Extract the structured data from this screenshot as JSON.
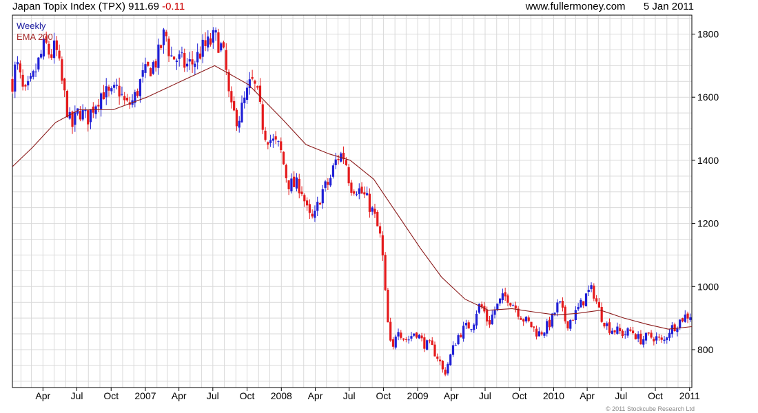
{
  "header": {
    "title": "Japan Topix Index (TPX)",
    "last_value": "911.69",
    "change": "-0.11",
    "site": "www.fullermoney.com",
    "date": "5 Jan 2011"
  },
  "legend": {
    "period": "Weekly",
    "ema": "EMA 200"
  },
  "copyright": "© 2011 Stockcube Research Ltd",
  "colors": {
    "up": "#1f1fd6",
    "down": "#e41a1c",
    "ema": "#8b1a1a",
    "grid": "#d9d9d9",
    "change": "#cc0000",
    "legend_weekly": "#1a1aa0",
    "legend_ema": "#a52a2a"
  },
  "chart_data": {
    "type": "candlestick",
    "title": "Japan Topix Index (TPX)",
    "frequency": "weekly",
    "y_axis_side": "right",
    "ylim": [
      680,
      1860
    ],
    "yticks": [
      800,
      1000,
      1200,
      1400,
      1600,
      1800
    ],
    "xlim": [
      "2006-01-09",
      "2011-01-07"
    ],
    "xticks": [
      {
        "date": "2006-04-01",
        "label": "Apr"
      },
      {
        "date": "2006-07-01",
        "label": "Jul"
      },
      {
        "date": "2006-10-01",
        "label": "Oct"
      },
      {
        "date": "2007-01-01",
        "label": "2007"
      },
      {
        "date": "2007-04-01",
        "label": "Apr"
      },
      {
        "date": "2007-07-01",
        "label": "Jul"
      },
      {
        "date": "2007-10-01",
        "label": "Oct"
      },
      {
        "date": "2008-01-01",
        "label": "2008"
      },
      {
        "date": "2008-04-01",
        "label": "Apr"
      },
      {
        "date": "2008-07-01",
        "label": "Jul"
      },
      {
        "date": "2008-10-01",
        "label": "Oct"
      },
      {
        "date": "2009-01-01",
        "label": "2009"
      },
      {
        "date": "2009-04-01",
        "label": "Apr"
      },
      {
        "date": "2009-07-01",
        "label": "Jul"
      },
      {
        "date": "2009-10-01",
        "label": "Oct"
      },
      {
        "date": "2010-01-01",
        "label": "2010"
      },
      {
        "date": "2010-04-01",
        "label": "Apr"
      },
      {
        "date": "2010-07-01",
        "label": "Jul"
      },
      {
        "date": "2010-10-01",
        "label": "Oct"
      },
      {
        "date": "2011-01-01",
        "label": "2011"
      }
    ],
    "price_anchors": [
      [
        "2006-01-09",
        1650
      ],
      [
        "2006-01-20",
        1710
      ],
      [
        "2006-02-10",
        1600
      ],
      [
        "2006-03-03",
        1650
      ],
      [
        "2006-03-17",
        1700
      ],
      [
        "2006-04-07",
        1770
      ],
      [
        "2006-04-21",
        1730
      ],
      [
        "2006-05-05",
        1760
      ],
      [
        "2006-05-26",
        1620
      ],
      [
        "2006-06-16",
        1500
      ],
      [
        "2006-07-07",
        1560
      ],
      [
        "2006-07-28",
        1530
      ],
      [
        "2006-08-18",
        1580
      ],
      [
        "2006-09-08",
        1620
      ],
      [
        "2006-09-29",
        1600
      ],
      [
        "2006-10-20",
        1630
      ],
      [
        "2006-11-10",
        1570
      ],
      [
        "2006-12-01",
        1590
      ],
      [
        "2006-12-22",
        1660
      ],
      [
        "2007-01-19",
        1700
      ],
      [
        "2007-02-02",
        1720
      ],
      [
        "2007-02-23",
        1810
      ],
      [
        "2007-03-09",
        1730
      ],
      [
        "2007-03-30",
        1720
      ],
      [
        "2007-04-20",
        1700
      ],
      [
        "2007-05-11",
        1710
      ],
      [
        "2007-06-01",
        1750
      ],
      [
        "2007-06-22",
        1770
      ],
      [
        "2007-07-06",
        1790
      ],
      [
        "2007-07-20",
        1770
      ],
      [
        "2007-08-03",
        1710
      ],
      [
        "2007-08-17",
        1560
      ],
      [
        "2007-09-07",
        1530
      ],
      [
        "2007-09-28",
        1600
      ],
      [
        "2007-10-12",
        1650
      ],
      [
        "2007-10-26",
        1620
      ],
      [
        "2007-11-16",
        1490
      ],
      [
        "2007-12-07",
        1460
      ],
      [
        "2007-12-28",
        1440
      ],
      [
        "2008-01-18",
        1330
      ],
      [
        "2008-02-01",
        1320
      ],
      [
        "2008-02-22",
        1320
      ],
      [
        "2008-03-14",
        1220
      ],
      [
        "2008-03-28",
        1210
      ],
      [
        "2008-04-18",
        1300
      ],
      [
        "2008-05-09",
        1330
      ],
      [
        "2008-05-23",
        1390
      ],
      [
        "2008-06-06",
        1420
      ],
      [
        "2008-06-20",
        1410
      ],
      [
        "2008-07-04",
        1320
      ],
      [
        "2008-07-25",
        1310
      ],
      [
        "2008-08-15",
        1280
      ],
      [
        "2008-09-05",
        1230
      ],
      [
        "2008-09-26",
        1140
      ],
      [
        "2008-10-10",
        910
      ],
      [
        "2008-10-24",
        780
      ],
      [
        "2008-11-07",
        880
      ],
      [
        "2008-11-21",
        840
      ],
      [
        "2008-12-05",
        830
      ],
      [
        "2008-12-26",
        860
      ],
      [
        "2009-01-16",
        820
      ],
      [
        "2009-02-06",
        810
      ],
      [
        "2009-02-27",
        770
      ],
      [
        "2009-03-13",
        720
      ],
      [
        "2009-03-27",
        770
      ],
      [
        "2009-04-17",
        840
      ],
      [
        "2009-05-08",
        870
      ],
      [
        "2009-05-29",
        880
      ],
      [
        "2009-06-12",
        940
      ],
      [
        "2009-06-26",
        930
      ],
      [
        "2009-07-10",
        880
      ],
      [
        "2009-07-24",
        920
      ],
      [
        "2009-08-14",
        960
      ],
      [
        "2009-08-28",
        970
      ],
      [
        "2009-09-18",
        940
      ],
      [
        "2009-10-09",
        900
      ],
      [
        "2009-10-30",
        880
      ],
      [
        "2009-11-20",
        850
      ],
      [
        "2009-12-04",
        860
      ],
      [
        "2009-12-25",
        890
      ],
      [
        "2010-01-15",
        950
      ],
      [
        "2010-02-05",
        880
      ],
      [
        "2010-02-26",
        910
      ],
      [
        "2010-03-19",
        950
      ],
      [
        "2010-04-02",
        980
      ],
      [
        "2010-04-16",
        990
      ],
      [
        "2010-05-07",
        910
      ],
      [
        "2010-05-28",
        870
      ],
      [
        "2010-06-18",
        860
      ],
      [
        "2010-07-09",
        850
      ],
      [
        "2010-07-30",
        860
      ],
      [
        "2010-08-20",
        830
      ],
      [
        "2010-09-10",
        840
      ],
      [
        "2010-10-01",
        840
      ],
      [
        "2010-10-22",
        820
      ],
      [
        "2010-11-05",
        860
      ],
      [
        "2010-11-26",
        880
      ],
      [
        "2010-12-17",
        905
      ],
      [
        "2011-01-07",
        912
      ]
    ],
    "ema_200": [
      [
        "2006-01-09",
        1380
      ],
      [
        "2006-03-03",
        1440
      ],
      [
        "2006-05-05",
        1520
      ],
      [
        "2006-07-07",
        1560
      ],
      [
        "2006-10-06",
        1560
      ],
      [
        "2007-01-05",
        1600
      ],
      [
        "2007-04-06",
        1650
      ],
      [
        "2007-07-06",
        1700
      ],
      [
        "2007-10-05",
        1640
      ],
      [
        "2008-01-04",
        1530
      ],
      [
        "2008-03-07",
        1450
      ],
      [
        "2008-05-09",
        1420
      ],
      [
        "2008-07-04",
        1400
      ],
      [
        "2008-09-05",
        1340
      ],
      [
        "2008-11-07",
        1230
      ],
      [
        "2009-01-09",
        1120
      ],
      [
        "2009-03-06",
        1030
      ],
      [
        "2009-05-08",
        960
      ],
      [
        "2009-07-10",
        925
      ],
      [
        "2009-09-11",
        930
      ],
      [
        "2009-11-06",
        920
      ],
      [
        "2010-01-08",
        910
      ],
      [
        "2010-03-05",
        915
      ],
      [
        "2010-05-07",
        925
      ],
      [
        "2010-07-09",
        900
      ],
      [
        "2010-09-10",
        880
      ],
      [
        "2010-11-05",
        865
      ],
      [
        "2011-01-07",
        873
      ]
    ],
    "latest_close": 911.69
  }
}
